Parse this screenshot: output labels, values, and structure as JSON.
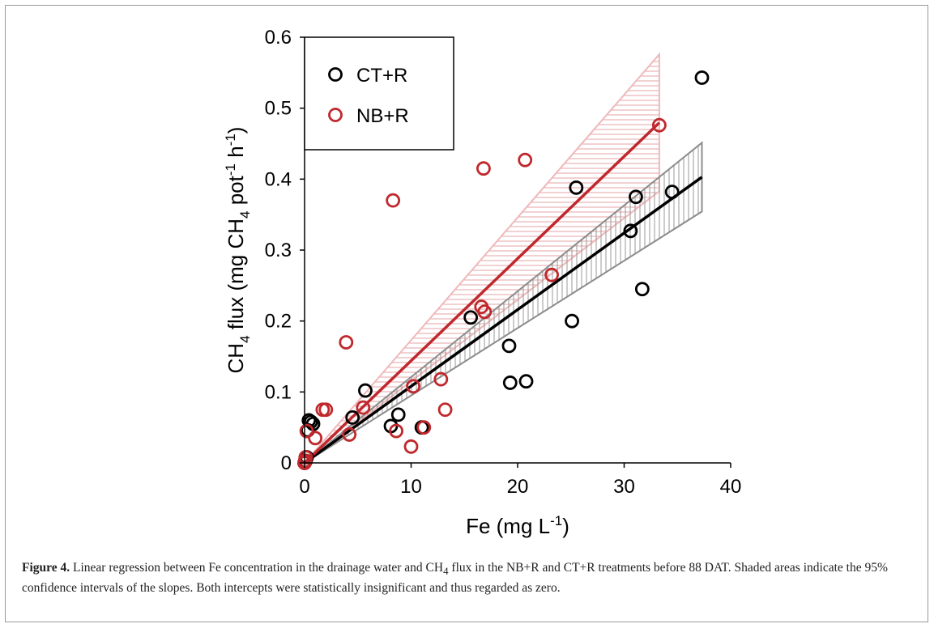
{
  "chart_data": {
    "type": "scatter",
    "xlabel_main": "Fe (mg L",
    "xlabel_sup": "-1",
    "xlabel_end": ")",
    "ylabel": {
      "p1": "CH",
      "sub1": "4",
      "p2": " flux (mg CH",
      "sub2": "4",
      "p3": " pot",
      "sup1": "-1",
      "p4": " h",
      "sup2": "-1",
      "p5": ")"
    },
    "xlim": [
      0,
      40
    ],
    "ylim": [
      0,
      0.6
    ],
    "x_ticks": [
      "0",
      "10",
      "20",
      "30",
      "40"
    ],
    "y_ticks": [
      "0",
      "0.1",
      "0.2",
      "0.3",
      "0.4",
      "0.5",
      "0.6"
    ],
    "grid": false,
    "legend_position": "top-left",
    "series": [
      {
        "name": "CT+R",
        "color": "#000000",
        "points": [
          [
            0,
            0
          ],
          [
            0.1,
            0.003
          ],
          [
            0.2,
            0.008
          ],
          [
            0.3,
            0.046
          ],
          [
            0.4,
            0.06
          ],
          [
            0.6,
            0.058
          ],
          [
            0.8,
            0.055
          ],
          [
            4.5,
            0.064
          ],
          [
            5.7,
            0.102
          ],
          [
            8.1,
            0.052
          ],
          [
            8.8,
            0.068
          ],
          [
            11.0,
            0.05
          ],
          [
            15.6,
            0.205
          ],
          [
            19.2,
            0.165
          ],
          [
            19.3,
            0.113
          ],
          [
            20.8,
            0.115
          ],
          [
            25.1,
            0.2
          ],
          [
            25.5,
            0.388
          ],
          [
            30.6,
            0.327
          ],
          [
            31.1,
            0.375
          ],
          [
            31.7,
            0.245
          ],
          [
            34.5,
            0.382
          ],
          [
            37.3,
            0.543
          ]
        ],
        "fit_slope": 0.0108,
        "fit_x_max": 37.3,
        "ci_slope_low": 0.0095,
        "ci_slope_high": 0.0121
      },
      {
        "name": "NB+R",
        "color": "#c0282d",
        "points": [
          [
            0,
            0.0
          ],
          [
            0.05,
            0.003
          ],
          [
            0.1,
            0.008
          ],
          [
            0.2,
            0.045
          ],
          [
            1.0,
            0.035
          ],
          [
            1.7,
            0.075
          ],
          [
            2.0,
            0.075
          ],
          [
            3.9,
            0.17
          ],
          [
            4.2,
            0.04
          ],
          [
            5.5,
            0.078
          ],
          [
            8.3,
            0.37
          ],
          [
            8.6,
            0.045
          ],
          [
            10.0,
            0.023
          ],
          [
            10.2,
            0.108
          ],
          [
            11.2,
            0.05
          ],
          [
            12.8,
            0.118
          ],
          [
            13.2,
            0.075
          ],
          [
            16.6,
            0.22
          ],
          [
            16.8,
            0.415
          ],
          [
            16.9,
            0.213
          ],
          [
            20.7,
            0.427
          ],
          [
            23.2,
            0.265
          ],
          [
            33.3,
            0.476
          ]
        ],
        "fit_slope": 0.0144,
        "fit_x_max": 33.3,
        "ci_slope_low": 0.0115,
        "ci_slope_high": 0.0173
      }
    ]
  },
  "caption": {
    "label": "Figure 4.",
    "text_a": " Linear regression between Fe concentration in the drainage water and CH",
    "sub": "4",
    "text_b": " flux in the NB+R and CT+R treatments before 88 DAT. Shaded areas indicate the 95% confidence intervals of the slopes. Both intercepts were statistically insignificant and thus regarded as zero."
  }
}
